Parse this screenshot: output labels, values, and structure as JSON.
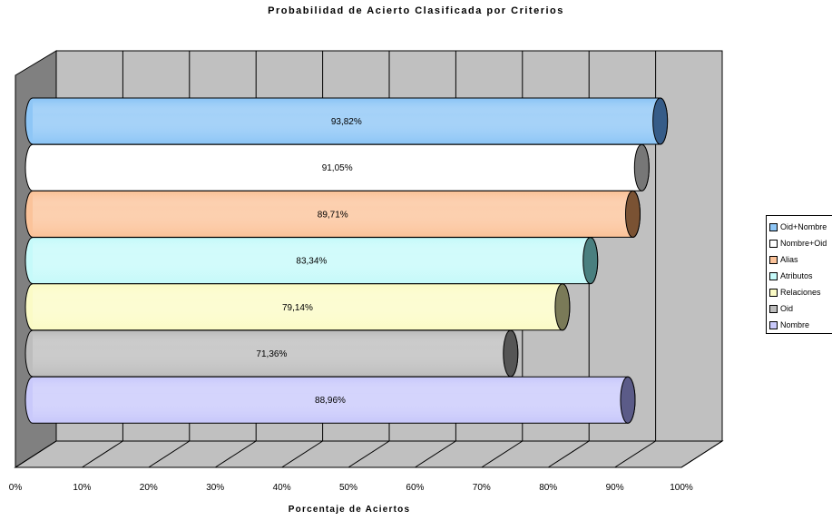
{
  "chart_data": {
    "type": "bar",
    "orientation": "horizontal",
    "style": "3d-cylinder",
    "title": "Probabilidad de Acierto Clasificada por Criterios",
    "xlabel": "Porcentaje de Aciertos",
    "ylabel": "",
    "xlim": [
      0,
      100
    ],
    "x_ticks": [
      "0%",
      "10%",
      "20%",
      "30%",
      "40%",
      "50%",
      "60%",
      "70%",
      "80%",
      "90%",
      "100%"
    ],
    "grid": true,
    "legend_position": "right",
    "series": [
      {
        "name": "Oid+Nombre",
        "value": 93.82,
        "label": "93,82%",
        "color": "#8ec6f6",
        "dark": "#365c88"
      },
      {
        "name": "Nombre+Oid",
        "value": 91.05,
        "label": "91,05%",
        "color": "#ffffff",
        "dark": "#777777"
      },
      {
        "name": "Alias",
        "value": 89.71,
        "label": "89,71%",
        "color": "#fbc39a",
        "dark": "#7a5233"
      },
      {
        "name": "Atributos",
        "value": 83.34,
        "label": "83,34%",
        "color": "#c6fafa",
        "dark": "#4a7f7f"
      },
      {
        "name": "Relaciones",
        "value": 79.14,
        "label": "79,14%",
        "color": "#fbfbc6",
        "dark": "#7a7a58"
      },
      {
        "name": "Oid",
        "value": 71.36,
        "label": "71,36%",
        "color": "#bdbdbd",
        "dark": "#555555"
      },
      {
        "name": "Nombre",
        "value": 88.96,
        "label": "88,96%",
        "color": "#c9c9fb",
        "dark": "#5b5b88"
      }
    ],
    "colors": {
      "wall": "#c0c0c0",
      "side_wall": "#808080",
      "floor": "#c0c0c0",
      "grid": "#000000"
    }
  }
}
